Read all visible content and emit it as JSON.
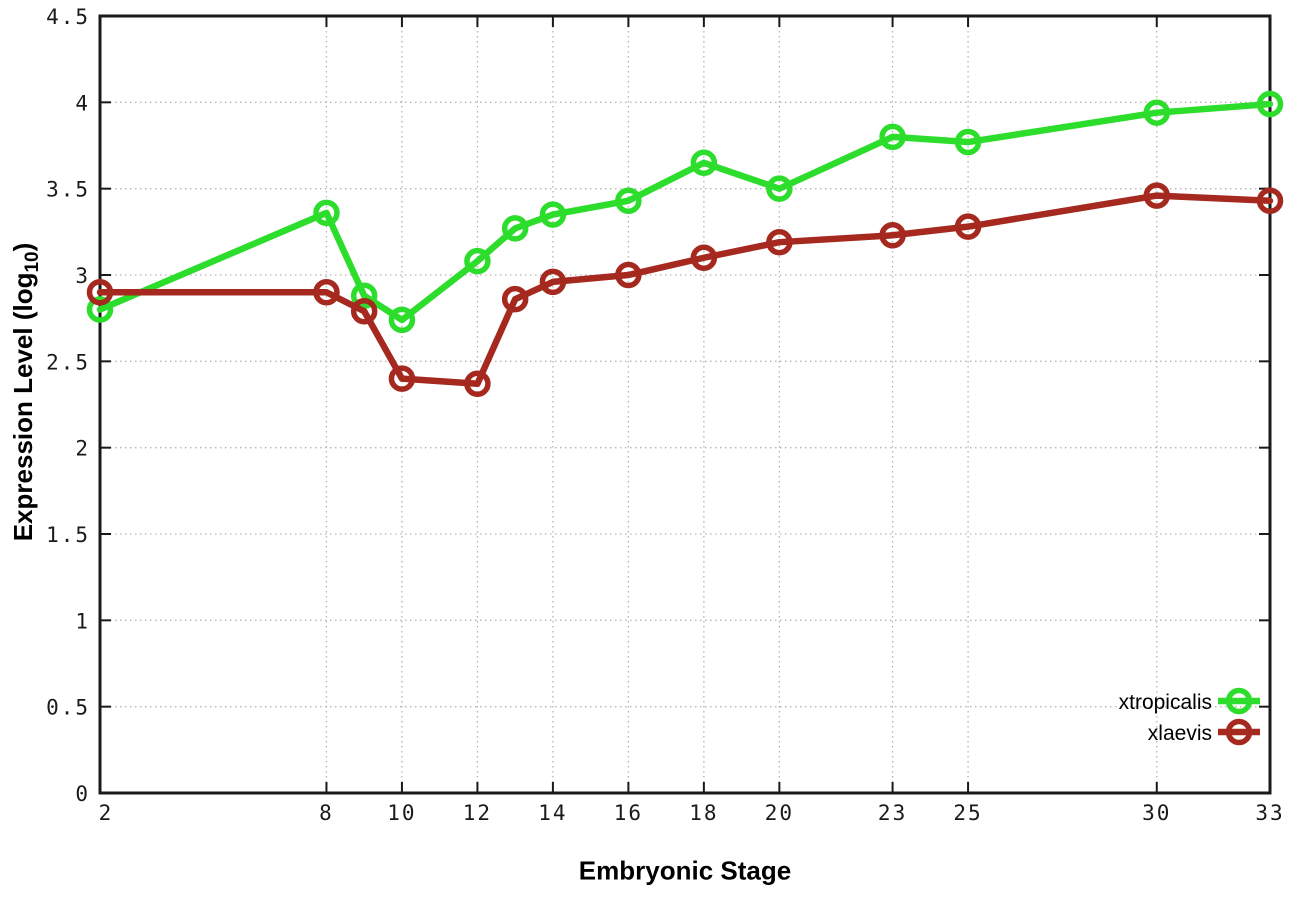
{
  "chart_data": {
    "type": "line",
    "title": "",
    "xlabel": "Embryonic Stage",
    "ylabel": "Expression Level (log10)",
    "ylabel_parts": {
      "main": "Expression Level (log",
      "sub": "10",
      "close": ")"
    },
    "x": [
      2,
      8,
      9,
      10,
      12,
      13,
      14,
      16,
      18,
      20,
      23,
      25,
      30,
      33
    ],
    "series": [
      {
        "name": "xtropicalis",
        "color": "#2cdd2c",
        "values": [
          2.8,
          3.36,
          2.88,
          2.74,
          3.08,
          3.27,
          3.35,
          3.43,
          3.65,
          3.5,
          3.8,
          3.77,
          3.94,
          3.99
        ]
      },
      {
        "name": "xlaevis",
        "color": "#a5291f",
        "values": [
          2.9,
          2.9,
          2.79,
          2.4,
          2.37,
          2.86,
          2.96,
          3.0,
          3.1,
          3.19,
          3.23,
          3.28,
          3.46,
          3.43
        ]
      }
    ],
    "xlim": [
      2,
      33
    ],
    "ylim": [
      0,
      4.5
    ],
    "x_ticks": {
      "values": [
        2,
        8,
        10,
        12,
        14,
        16,
        18,
        20,
        23,
        25,
        30,
        33
      ],
      "labels": [
        "2",
        "8",
        "10",
        "12",
        "14",
        "16",
        "18",
        "20",
        "23",
        "25",
        "30",
        "33"
      ]
    },
    "y_ticks": {
      "values": [
        0,
        0.5,
        1,
        1.5,
        2,
        2.5,
        3,
        3.5,
        4,
        4.5
      ],
      "labels": [
        "0",
        "0.5",
        "1",
        "1.5",
        "2",
        "2.5",
        "3",
        "3.5",
        "4",
        "4.5"
      ]
    },
    "grid": true,
    "marker": "open-circle",
    "legend_position": "inside-bottom-right",
    "colors": {
      "background": "#ffffff",
      "axis": "#1a1a1a",
      "grid": "#b5b5b5",
      "text": "#000000"
    }
  }
}
